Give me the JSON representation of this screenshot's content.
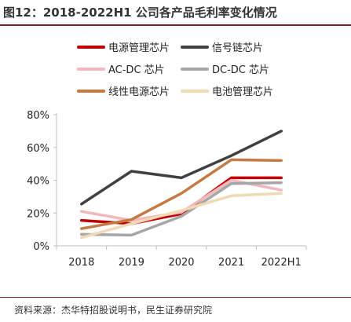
{
  "header": {
    "title": "图12：2018-2022H1 公司各产品毛利率变化情况"
  },
  "footer": {
    "source": "资料来源：杰华特招股说明书，民生证券研究院"
  },
  "chart_data": {
    "type": "line",
    "x": [
      "2018",
      "2019",
      "2020",
      "2021",
      "2022H1"
    ],
    "ylim": [
      0,
      80
    ],
    "yticks": [
      0,
      20,
      40,
      60,
      80
    ],
    "ytick_labels": [
      "0%",
      "20%",
      "40%",
      "60%",
      "80%"
    ],
    "grid": false,
    "legend_position": "top",
    "series": [
      {
        "name": "电源管理芯片",
        "color": "#c00000",
        "values": [
          15.5,
          13.5,
          19.5,
          41.5,
          41.5
        ]
      },
      {
        "name": "信号链芯片",
        "color": "#404040",
        "values": [
          25.5,
          45.5,
          41.5,
          55.0,
          70.0
        ]
      },
      {
        "name": "AC-DC 芯片",
        "color": "#f0b8bc",
        "values": [
          21.0,
          15.5,
          20.5,
          40.0,
          34.0
        ]
      },
      {
        "name": "DC-DC 芯片",
        "color": "#a6a6a6",
        "values": [
          7.0,
          6.5,
          18.0,
          38.0,
          38.5
        ]
      },
      {
        "name": "线性电源芯片",
        "color": "#c47a45",
        "values": [
          10.5,
          16.0,
          32.0,
          52.5,
          52.0
        ]
      },
      {
        "name": "电池管理芯片",
        "color": "#f0d9b5",
        "values": [
          5.0,
          13.5,
          21.5,
          30.5,
          32.0
        ]
      }
    ]
  }
}
